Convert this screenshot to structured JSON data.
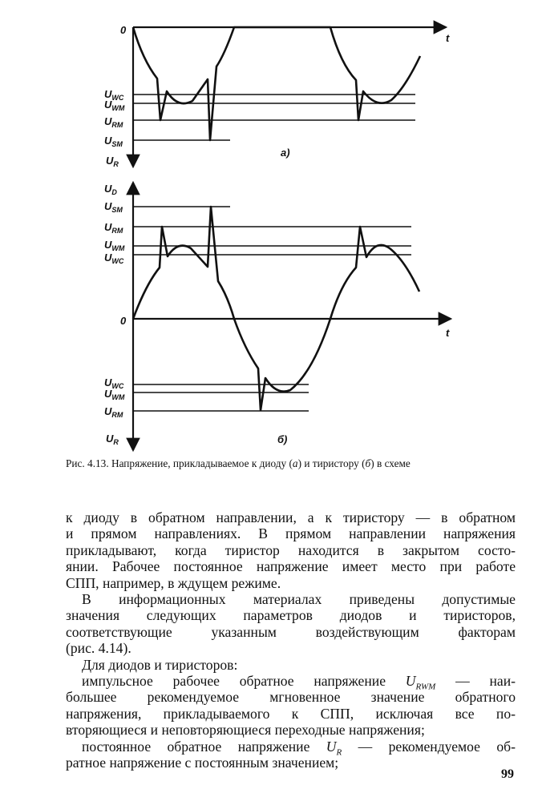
{
  "figure": {
    "a": {
      "origin_label": "0",
      "t_label": "t",
      "panel_label": "a)",
      "levels": [
        {
          "main": "U",
          "sub": "WC"
        },
        {
          "main": "U",
          "sub": "WM"
        },
        {
          "main": "U",
          "sub": "RM"
        },
        {
          "main": "U",
          "sub": "SM"
        }
      ],
      "axis_bottom": {
        "main": "U",
        "sub": "R"
      }
    },
    "b": {
      "axis_top": {
        "main": "U",
        "sub": "D"
      },
      "upper_levels": [
        {
          "main": "U",
          "sub": "SM"
        },
        {
          "main": "U",
          "sub": "RM"
        },
        {
          "main": "U",
          "sub": "WM"
        },
        {
          "main": "U",
          "sub": "WC"
        }
      ],
      "origin_label": "0",
      "t_label": "t",
      "lower_levels": [
        {
          "main": "U",
          "sub": "WC"
        },
        {
          "main": "U",
          "sub": "WM"
        },
        {
          "main": "U",
          "sub": "RM"
        }
      ],
      "axis_bottom": {
        "main": "U",
        "sub": "R"
      },
      "panel_label": "б)"
    }
  },
  "caption": {
    "p1": "Рис. 4.13. Напряжение, прикладываемое к диоду (",
    "a": "а",
    "p2": ") и тиристору (",
    "b": "б",
    "p3": ") в схеме"
  },
  "body": {
    "lines": [
      "к диоду в обратном направлении, а к тиристору — в обратном",
      "и прямом направлениях. В прямом направлении напряжения",
      "прикладывают, когда тиристор находится в закрытом состо-",
      "янии. Рабочее постоянное напряжение имеет место при работе",
      "СПП, например, в ждущем режиме.",
      "В информационных материалах приведены допустимые",
      "значения следующих параметров диодов и тиристоров,",
      "соответствующие указанным воздействующим факторам",
      "(рис. 4.14).",
      "Для диодов и тиристоров:"
    ],
    "urwm_line": {
      "before": "импульсное рабочее обратное напряжение ",
      "sym": "U",
      "sub": "RWM",
      "after": " — наи-"
    },
    "lines2": [
      "большее рекомендуемое мгновенное значение обратного",
      "напряжения, прикладываемого к СПП, исключая все по-",
      "вторяющиеся и неповторяющиеся переходные напряжения;"
    ],
    "ur_line": {
      "before": "постоянное обратное напряжение ",
      "sym": "U",
      "sub": "R",
      "after": " — рекомендуемое об-"
    },
    "last_line": "ратное напряжение с постоянным значением;"
  },
  "page_number": "99"
}
